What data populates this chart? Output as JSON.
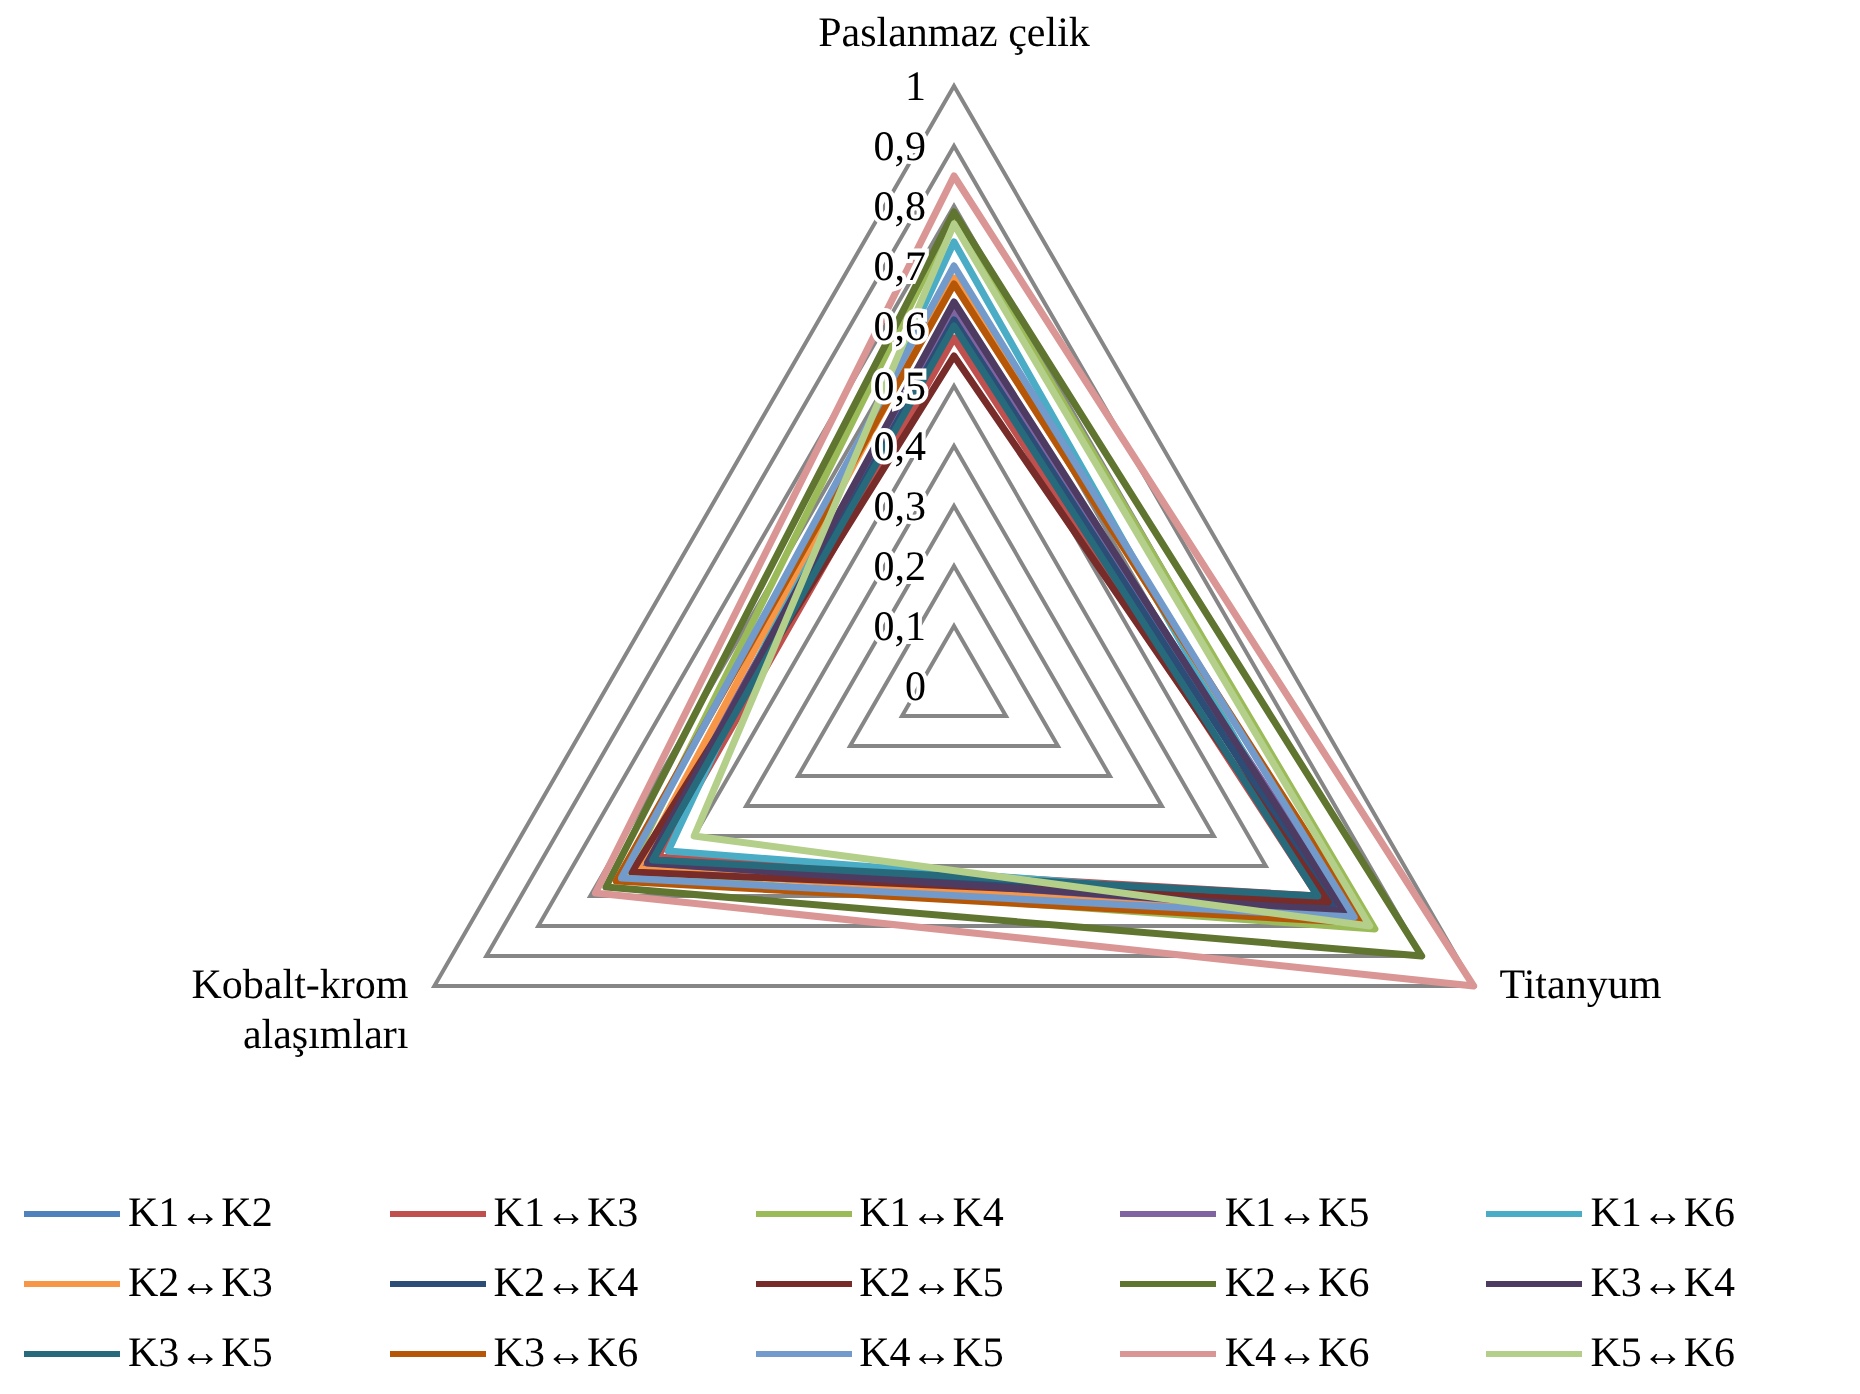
{
  "chart_data": {
    "type": "radar",
    "categories": [
      "Paslanmaz çelik",
      "Titanyum",
      "Kobalt-krom alaşımları"
    ],
    "ylim": [
      0,
      1
    ],
    "yticks": [
      0,
      {
        "value": 0.1,
        "label": "0,1"
      },
      {
        "value": 0.2,
        "label": "0,2"
      },
      {
        "value": 0.3,
        "label": "0,3"
      },
      {
        "value": 0.4,
        "label": "0,4"
      },
      {
        "value": 0.5,
        "label": "0,5"
      },
      {
        "value": 0.6,
        "label": "0,6"
      },
      {
        "value": 0.7,
        "label": "0,7"
      },
      {
        "value": 0.8,
        "label": "0,8"
      },
      {
        "value": 0.9,
        "label": "0,9"
      },
      1
    ],
    "grid": true,
    "legend": "bottom",
    "marker": "none",
    "series": [
      {
        "name": "K1↔K2",
        "color": "#4f81bd",
        "values": [
          0.62,
          0.74,
          0.6
        ]
      },
      {
        "name": "K1↔K3",
        "color": "#c0504d",
        "values": [
          0.58,
          0.7,
          0.57
        ]
      },
      {
        "name": "K1↔K4",
        "color": "#9bbb59",
        "values": [
          0.78,
          0.81,
          0.63
        ]
      },
      {
        "name": "K1↔K5",
        "color": "#8064a2",
        "values": [
          0.63,
          0.76,
          0.6
        ]
      },
      {
        "name": "K1↔K6",
        "color": "#4bacc6",
        "values": [
          0.74,
          0.72,
          0.55
        ]
      },
      {
        "name": "K2↔K3",
        "color": "#f79646",
        "values": [
          0.68,
          0.78,
          0.61
        ]
      },
      {
        "name": "K2↔K4",
        "color": "#2c4d75",
        "values": [
          0.61,
          0.73,
          0.58
        ]
      },
      {
        "name": "K2↔K5",
        "color": "#772c2a",
        "values": [
          0.55,
          0.72,
          0.62
        ]
      },
      {
        "name": "K2↔K6",
        "color": "#5f7530",
        "values": [
          0.79,
          0.9,
          0.67
        ]
      },
      {
        "name": "K3↔K4",
        "color": "#4d3b62",
        "values": [
          0.64,
          0.75,
          0.59
        ]
      },
      {
        "name": "K3↔K5",
        "color": "#276a7c",
        "values": [
          0.6,
          0.7,
          0.58
        ]
      },
      {
        "name": "K3↔K6",
        "color": "#b65708",
        "values": [
          0.67,
          0.79,
          0.65
        ]
      },
      {
        "name": "K4↔K5",
        "color": "#729aca",
        "values": [
          0.7,
          0.77,
          0.64
        ]
      },
      {
        "name": "K4↔K6",
        "color": "#d99694",
        "values": [
          0.85,
          1,
          0.69
        ]
      },
      {
        "name": "K5↔K6",
        "color": "#b3cf89",
        "values": [
          0.77,
          0.8,
          0.5
        ]
      }
    ]
  }
}
